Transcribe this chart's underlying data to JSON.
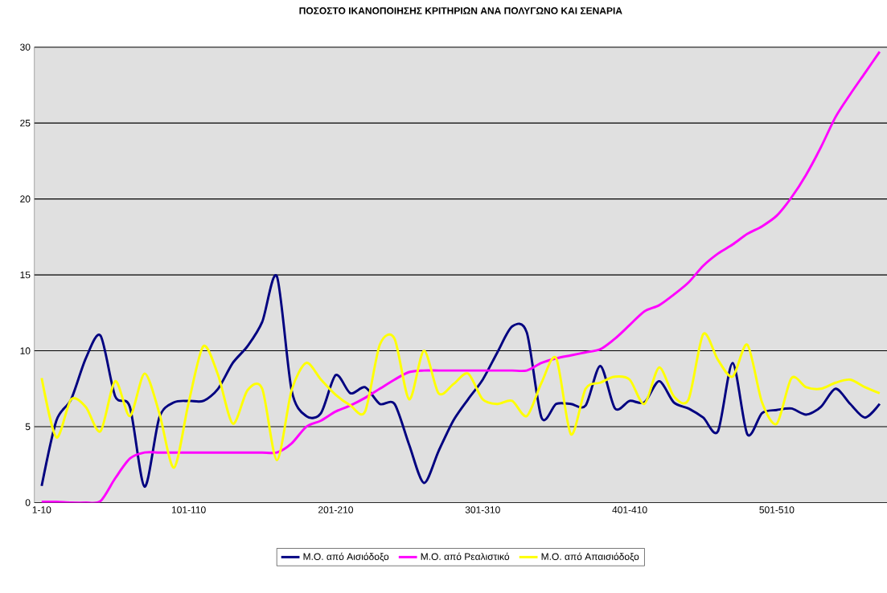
{
  "chart_data": {
    "type": "line",
    "title": "ΠΟΣΟΣΤΟ ΙΚΑΝΟΠΟΙΗΣΗΣ ΚΡΙΤΗΡΙΩΝ ΑΝΑ ΠΟΛΥΓΩΝΟ ΚΑΙ ΣΕΝΑΡΙΑ",
    "categories": [
      "1-10",
      null,
      null,
      null,
      null,
      null,
      null,
      null,
      null,
      null,
      "101-110",
      null,
      null,
      null,
      null,
      null,
      null,
      null,
      null,
      null,
      "201-210",
      null,
      null,
      null,
      null,
      null,
      null,
      null,
      null,
      null,
      "301-310",
      null,
      null,
      null,
      null,
      null,
      null,
      null,
      null,
      null,
      "401-410",
      null,
      null,
      null,
      null,
      null,
      null,
      null,
      null,
      null,
      "501-510",
      null,
      null,
      null,
      null,
      null,
      null,
      null
    ],
    "series": [
      {
        "name": "Μ.Ο. από Αισιόδοξο",
        "color": "#000080",
        "values": [
          1.1,
          5.4,
          6.8,
          9.5,
          11.0,
          7.0,
          6.3,
          1.05,
          5.6,
          6.6,
          6.7,
          6.7,
          7.5,
          9.2,
          10.3,
          11.9,
          14.9,
          7.4,
          5.7,
          5.9,
          8.4,
          7.2,
          7.6,
          6.5,
          6.5,
          3.8,
          1.3,
          3.4,
          5.4,
          6.8,
          8.1,
          9.9,
          11.6,
          11.2,
          5.6,
          6.5,
          6.5,
          6.4,
          9.0,
          6.2,
          6.7,
          6.6,
          8.0,
          6.6,
          6.2,
          5.6,
          4.7,
          9.2,
          4.5,
          5.9,
          6.1,
          6.2,
          5.8,
          6.3,
          7.5,
          6.5,
          5.6,
          6.5
        ]
      },
      {
        "name": "Μ.Ο. από Ρεαλιστικό",
        "color": "#ff00ff",
        "values": [
          0.05,
          0.05,
          0.0,
          0.0,
          0.1,
          1.6,
          2.9,
          3.3,
          3.3,
          3.3,
          3.3,
          3.3,
          3.3,
          3.3,
          3.3,
          3.3,
          3.3,
          3.9,
          5.0,
          5.4,
          6.0,
          6.4,
          6.9,
          7.5,
          8.1,
          8.6,
          8.7,
          8.7,
          8.7,
          8.7,
          8.7,
          8.7,
          8.7,
          8.7,
          9.2,
          9.5,
          9.7,
          9.9,
          10.1,
          10.8,
          11.7,
          12.6,
          13.0,
          13.7,
          14.5,
          15.6,
          16.4,
          17.0,
          17.7,
          18.2,
          18.9,
          20.1,
          21.6,
          23.4,
          25.4,
          26.9,
          28.3,
          29.7
        ]
      },
      {
        "name": "Μ.Ο. από Απαισιόδοξο",
        "color": "#ffff00",
        "values": [
          8.2,
          4.3,
          6.8,
          6.3,
          4.7,
          8.0,
          5.7,
          8.5,
          5.9,
          2.3,
          6.6,
          10.3,
          8.4,
          5.2,
          7.4,
          7.5,
          2.8,
          7.4,
          9.2,
          8.1,
          7.1,
          6.4,
          6.0,
          10.4,
          10.8,
          6.8,
          10.0,
          7.2,
          7.8,
          8.5,
          6.8,
          6.5,
          6.7,
          5.7,
          7.9,
          9.5,
          4.5,
          7.5,
          7.9,
          8.3,
          8.1,
          6.5,
          8.9,
          7.0,
          6.8,
          11.1,
          9.4,
          8.3,
          10.4,
          6.6,
          5.2,
          8.2,
          7.6,
          7.5,
          7.9,
          8.1,
          7.6,
          7.2
        ]
      }
    ],
    "ylim": [
      0,
      30
    ],
    "yticks": [
      0,
      5,
      10,
      15,
      20,
      25,
      30
    ],
    "grid": "y",
    "legend": "bottom"
  }
}
